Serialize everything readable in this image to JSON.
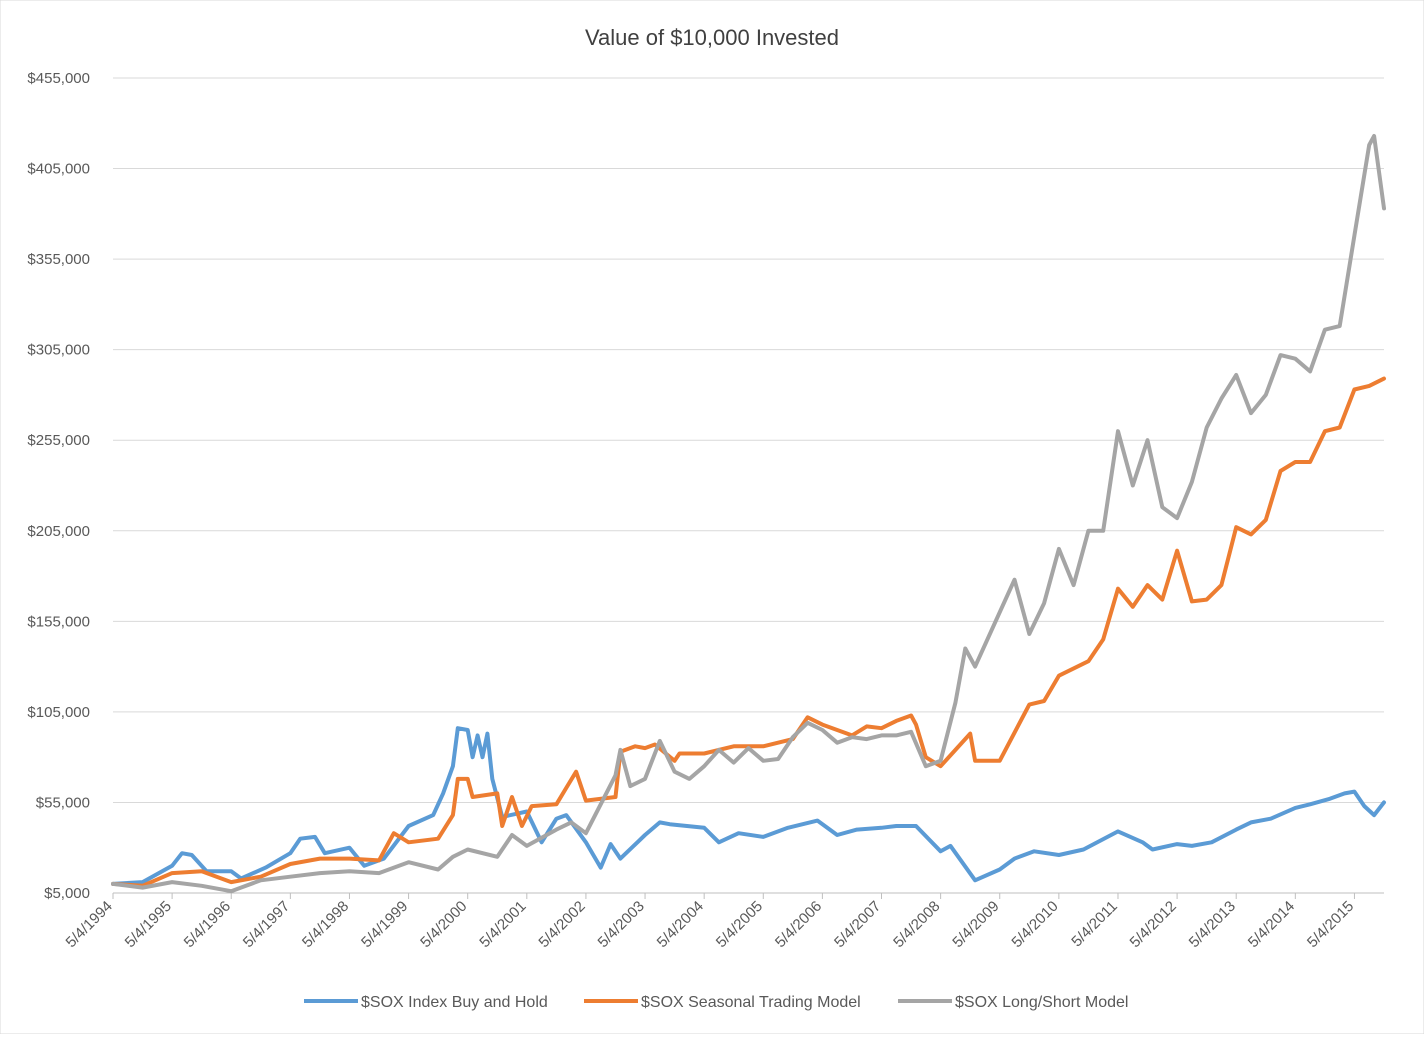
{
  "chart_data": {
    "type": "line",
    "title": "Value of $10,000 Invested",
    "xlabel": "",
    "ylabel": "",
    "ylim": [
      5000,
      455000
    ],
    "y_ticks": [
      5000,
      55000,
      105000,
      155000,
      205000,
      255000,
      305000,
      355000,
      405000,
      455000
    ],
    "y_tick_labels": [
      "$5,000",
      "$55,000",
      "$105,000",
      "$155,000",
      "$205,000",
      "$255,000",
      "$305,000",
      "$355,000",
      "$405,000",
      "$455,000"
    ],
    "x_tick_labels": [
      "5/4/1994",
      "5/4/1995",
      "5/4/1996",
      "5/4/1997",
      "5/4/1998",
      "5/4/1999",
      "5/4/2000",
      "5/4/2001",
      "5/4/2002",
      "5/4/2003",
      "5/4/2004",
      "5/4/2005",
      "5/4/2006",
      "5/4/2007",
      "5/4/2008",
      "5/4/2009",
      "5/4/2010",
      "5/4/2011",
      "5/4/2012",
      "5/4/2013",
      "5/4/2014",
      "5/4/2015"
    ],
    "x_range": [
      "5/4/1994",
      "11/4/2015"
    ],
    "grid": "horizontal",
    "legend_position": "bottom",
    "series": [
      {
        "name": "$SOX Index Buy and Hold",
        "color": "#5B9BD5",
        "points": [
          [
            "5/4/1994",
            10000
          ],
          [
            "11/4/1994",
            11000
          ],
          [
            "5/4/1995",
            20000
          ],
          [
            "7/4/1995",
            27000
          ],
          [
            "9/4/1995",
            26000
          ],
          [
            "12/4/1995",
            17000
          ],
          [
            "5/4/1996",
            17000
          ],
          [
            "7/4/1996",
            13000
          ],
          [
            "12/4/1996",
            19000
          ],
          [
            "5/4/1997",
            27000
          ],
          [
            "7/4/1997",
            35000
          ],
          [
            "10/4/1997",
            36000
          ],
          [
            "12/4/1997",
            27000
          ],
          [
            "5/4/1998",
            30000
          ],
          [
            "8/4/1998",
            20000
          ],
          [
            "12/4/1998",
            24000
          ],
          [
            "5/4/1999",
            42000
          ],
          [
            "10/4/1999",
            48000
          ],
          [
            "12/4/1999",
            60000
          ],
          [
            "2/4/2000",
            75000
          ],
          [
            "3/4/2000",
            96000
          ],
          [
            "5/4/2000",
            95000
          ],
          [
            "6/4/2000",
            80000
          ],
          [
            "7/4/2000",
            92000
          ],
          [
            "8/4/2000",
            80000
          ],
          [
            "9/4/2000",
            93000
          ],
          [
            "10/4/2000",
            68000
          ],
          [
            "12/4/2000",
            47000
          ],
          [
            "5/4/2001",
            50000
          ],
          [
            "8/4/2001",
            33000
          ],
          [
            "11/4/2001",
            46000
          ],
          [
            "1/4/2002",
            48000
          ],
          [
            "5/4/2002",
            33000
          ],
          [
            "8/4/2002",
            19000
          ],
          [
            "10/4/2002",
            32000
          ],
          [
            "12/4/2002",
            24000
          ],
          [
            "5/4/2003",
            37000
          ],
          [
            "8/4/2003",
            44000
          ],
          [
            "10/4/2003",
            43000
          ],
          [
            "5/4/2004",
            41000
          ],
          [
            "8/4/2004",
            33000
          ],
          [
            "12/4/2004",
            38000
          ],
          [
            "5/4/2005",
            36000
          ],
          [
            "10/4/2005",
            41000
          ],
          [
            "4/4/2006",
            45000
          ],
          [
            "8/4/2006",
            37000
          ],
          [
            "12/4/2006",
            40000
          ],
          [
            "5/4/2007",
            41000
          ],
          [
            "8/4/2007",
            42000
          ],
          [
            "12/4/2007",
            42000
          ],
          [
            "5/4/2008",
            28000
          ],
          [
            "7/4/2008",
            31000
          ],
          [
            "12/4/2008",
            12000
          ],
          [
            "5/4/2009",
            18000
          ],
          [
            "8/4/2009",
            24000
          ],
          [
            "12/4/2009",
            28000
          ],
          [
            "5/4/2010",
            26000
          ],
          [
            "10/4/2010",
            29000
          ],
          [
            "5/4/2011",
            39000
          ],
          [
            "10/4/2011",
            33000
          ],
          [
            "12/4/2011",
            29000
          ],
          [
            "5/4/2012",
            32000
          ],
          [
            "8/4/2012",
            31000
          ],
          [
            "12/4/2012",
            33000
          ],
          [
            "5/4/2013",
            40000
          ],
          [
            "8/4/2013",
            44000
          ],
          [
            "12/4/2013",
            46000
          ],
          [
            "5/4/2014",
            52000
          ],
          [
            "8/4/2014",
            54000
          ],
          [
            "12/4/2014",
            57000
          ],
          [
            "3/4/2015",
            60000
          ],
          [
            "5/4/2015",
            61000
          ],
          [
            "7/4/2015",
            53000
          ],
          [
            "9/4/2015",
            48000
          ],
          [
            "11/4/2015",
            55000
          ]
        ]
      },
      {
        "name": "$SOX Seasonal Trading Model",
        "color": "#ED7D31",
        "points": [
          [
            "5/4/1994",
            10000
          ],
          [
            "11/4/1994",
            9000
          ],
          [
            "5/4/1995",
            16000
          ],
          [
            "11/4/1995",
            17000
          ],
          [
            "5/4/1996",
            11000
          ],
          [
            "11/4/1996",
            14000
          ],
          [
            "5/4/1997",
            21000
          ],
          [
            "11/4/1997",
            24000
          ],
          [
            "5/4/1998",
            24000
          ],
          [
            "11/4/1998",
            23000
          ],
          [
            "2/4/1999",
            38000
          ],
          [
            "5/4/1999",
            33000
          ],
          [
            "11/4/1999",
            35000
          ],
          [
            "2/4/2000",
            48000
          ],
          [
            "3/4/2000",
            68000
          ],
          [
            "5/4/2000",
            68000
          ],
          [
            "6/4/2000",
            58000
          ],
          [
            "11/4/2000",
            60000
          ],
          [
            "12/4/2000",
            42000
          ],
          [
            "2/4/2001",
            58000
          ],
          [
            "4/4/2001",
            42000
          ],
          [
            "6/4/2001",
            53000
          ],
          [
            "11/4/2001",
            54000
          ],
          [
            "1/4/2002",
            63000
          ],
          [
            "3/4/2002",
            72000
          ],
          [
            "5/4/2002",
            56000
          ],
          [
            "11/4/2002",
            58000
          ],
          [
            "12/4/2002",
            83000
          ],
          [
            "3/4/2003",
            86000
          ],
          [
            "5/4/2003",
            85000
          ],
          [
            "7/4/2003",
            87000
          ],
          [
            "11/4/2003",
            78000
          ],
          [
            "12/4/2003",
            82000
          ],
          [
            "5/4/2004",
            82000
          ],
          [
            "11/4/2004",
            86000
          ],
          [
            "5/4/2005",
            86000
          ],
          [
            "11/4/2005",
            90000
          ],
          [
            "2/4/2006",
            102000
          ],
          [
            "5/4/2006",
            98000
          ],
          [
            "11/4/2006",
            92000
          ],
          [
            "2/4/2007",
            97000
          ],
          [
            "5/4/2007",
            96000
          ],
          [
            "8/4/2007",
            100000
          ],
          [
            "11/4/2007",
            103000
          ],
          [
            "12/4/2007",
            98000
          ],
          [
            "2/4/2008",
            80000
          ],
          [
            "5/4/2008",
            75000
          ],
          [
            "11/4/2008",
            93000
          ],
          [
            "12/4/2008",
            78000
          ],
          [
            "5/4/2009",
            78000
          ],
          [
            "11/4/2009",
            109000
          ],
          [
            "2/4/2010",
            111000
          ],
          [
            "5/4/2010",
            125000
          ],
          [
            "11/4/2010",
            133000
          ],
          [
            "2/4/2011",
            145000
          ],
          [
            "5/4/2011",
            173000
          ],
          [
            "8/4/2011",
            163000
          ],
          [
            "11/4/2011",
            175000
          ],
          [
            "2/4/2012",
            167000
          ],
          [
            "5/4/2012",
            194000
          ],
          [
            "8/4/2012",
            166000
          ],
          [
            "11/4/2012",
            167000
          ],
          [
            "2/4/2013",
            175000
          ],
          [
            "5/4/2013",
            207000
          ],
          [
            "8/4/2013",
            203000
          ],
          [
            "11/4/2013",
            211000
          ],
          [
            "2/4/2014",
            238000
          ],
          [
            "5/4/2014",
            243000
          ],
          [
            "8/4/2014",
            243000
          ],
          [
            "11/4/2014",
            260000
          ],
          [
            "2/4/2015",
            262000
          ],
          [
            "5/4/2015",
            283000
          ],
          [
            "8/4/2015",
            285000
          ],
          [
            "11/4/2015",
            289000
          ]
        ]
      },
      {
        "name": "$SOX Long/Short Model",
        "color": "#A5A5A5",
        "points": [
          [
            "5/4/1994",
            10000
          ],
          [
            "11/4/1994",
            8000
          ],
          [
            "5/4/1995",
            11000
          ],
          [
            "11/4/1995",
            9000
          ],
          [
            "5/4/1996",
            6000
          ],
          [
            "11/4/1996",
            12000
          ],
          [
            "5/4/1997",
            14000
          ],
          [
            "11/4/1997",
            16000
          ],
          [
            "5/4/1998",
            17000
          ],
          [
            "11/4/1998",
            16000
          ],
          [
            "5/4/1999",
            22000
          ],
          [
            "11/4/1999",
            18000
          ],
          [
            "2/4/2000",
            25000
          ],
          [
            "5/4/2000",
            29000
          ],
          [
            "11/4/2000",
            25000
          ],
          [
            "2/4/2001",
            37000
          ],
          [
            "5/4/2001",
            31000
          ],
          [
            "11/4/2001",
            40000
          ],
          [
            "2/4/2002",
            44000
          ],
          [
            "5/4/2002",
            38000
          ],
          [
            "8/4/2002",
            54000
          ],
          [
            "11/4/2002",
            70000
          ],
          [
            "12/4/2002",
            84000
          ],
          [
            "2/4/2003",
            64000
          ],
          [
            "5/4/2003",
            68000
          ],
          [
            "8/4/2003",
            89000
          ],
          [
            "11/4/2003",
            72000
          ],
          [
            "2/4/2004",
            68000
          ],
          [
            "5/4/2004",
            75000
          ],
          [
            "8/4/2004",
            84000
          ],
          [
            "11/4/2004",
            77000
          ],
          [
            "2/4/2005",
            85000
          ],
          [
            "5/4/2005",
            78000
          ],
          [
            "8/4/2005",
            79000
          ],
          [
            "11/4/2005",
            91000
          ],
          [
            "2/4/2006",
            99000
          ],
          [
            "5/4/2006",
            95000
          ],
          [
            "8/4/2006",
            88000
          ],
          [
            "11/4/2006",
            91000
          ],
          [
            "2/4/2007",
            90000
          ],
          [
            "5/4/2007",
            92000
          ],
          [
            "8/4/2007",
            92000
          ],
          [
            "11/4/2007",
            94000
          ],
          [
            "2/4/2008",
            75000
          ],
          [
            "5/4/2008",
            78000
          ],
          [
            "8/4/2008",
            110000
          ],
          [
            "10/4/2008",
            140000
          ],
          [
            "12/4/2008",
            130000
          ],
          [
            "5/4/2009",
            160000
          ],
          [
            "8/4/2009",
            178000
          ],
          [
            "11/4/2009",
            148000
          ],
          [
            "2/4/2010",
            165000
          ],
          [
            "5/4/2010",
            195000
          ],
          [
            "8/4/2010",
            175000
          ],
          [
            "11/4/2010",
            205000
          ],
          [
            "2/4/2011",
            205000
          ],
          [
            "5/4/2011",
            260000
          ],
          [
            "8/4/2011",
            230000
          ],
          [
            "11/4/2011",
            255000
          ],
          [
            "2/4/2012",
            218000
          ],
          [
            "5/4/2012",
            212000
          ],
          [
            "8/4/2012",
            232000
          ],
          [
            "11/4/2012",
            262000
          ],
          [
            "2/4/2013",
            278000
          ],
          [
            "5/4/2013",
            291000
          ],
          [
            "8/4/2013",
            270000
          ],
          [
            "11/4/2013",
            280000
          ],
          [
            "2/4/2014",
            302000
          ],
          [
            "5/4/2014",
            300000
          ],
          [
            "8/4/2014",
            293000
          ],
          [
            "11/4/2014",
            316000
          ],
          [
            "2/4/2015",
            318000
          ],
          [
            "5/4/2015",
            368000
          ],
          [
            "8/4/2015",
            418000
          ],
          [
            "9/4/2015",
            423000
          ],
          [
            "11/4/2015",
            383000
          ]
        ]
      }
    ]
  }
}
